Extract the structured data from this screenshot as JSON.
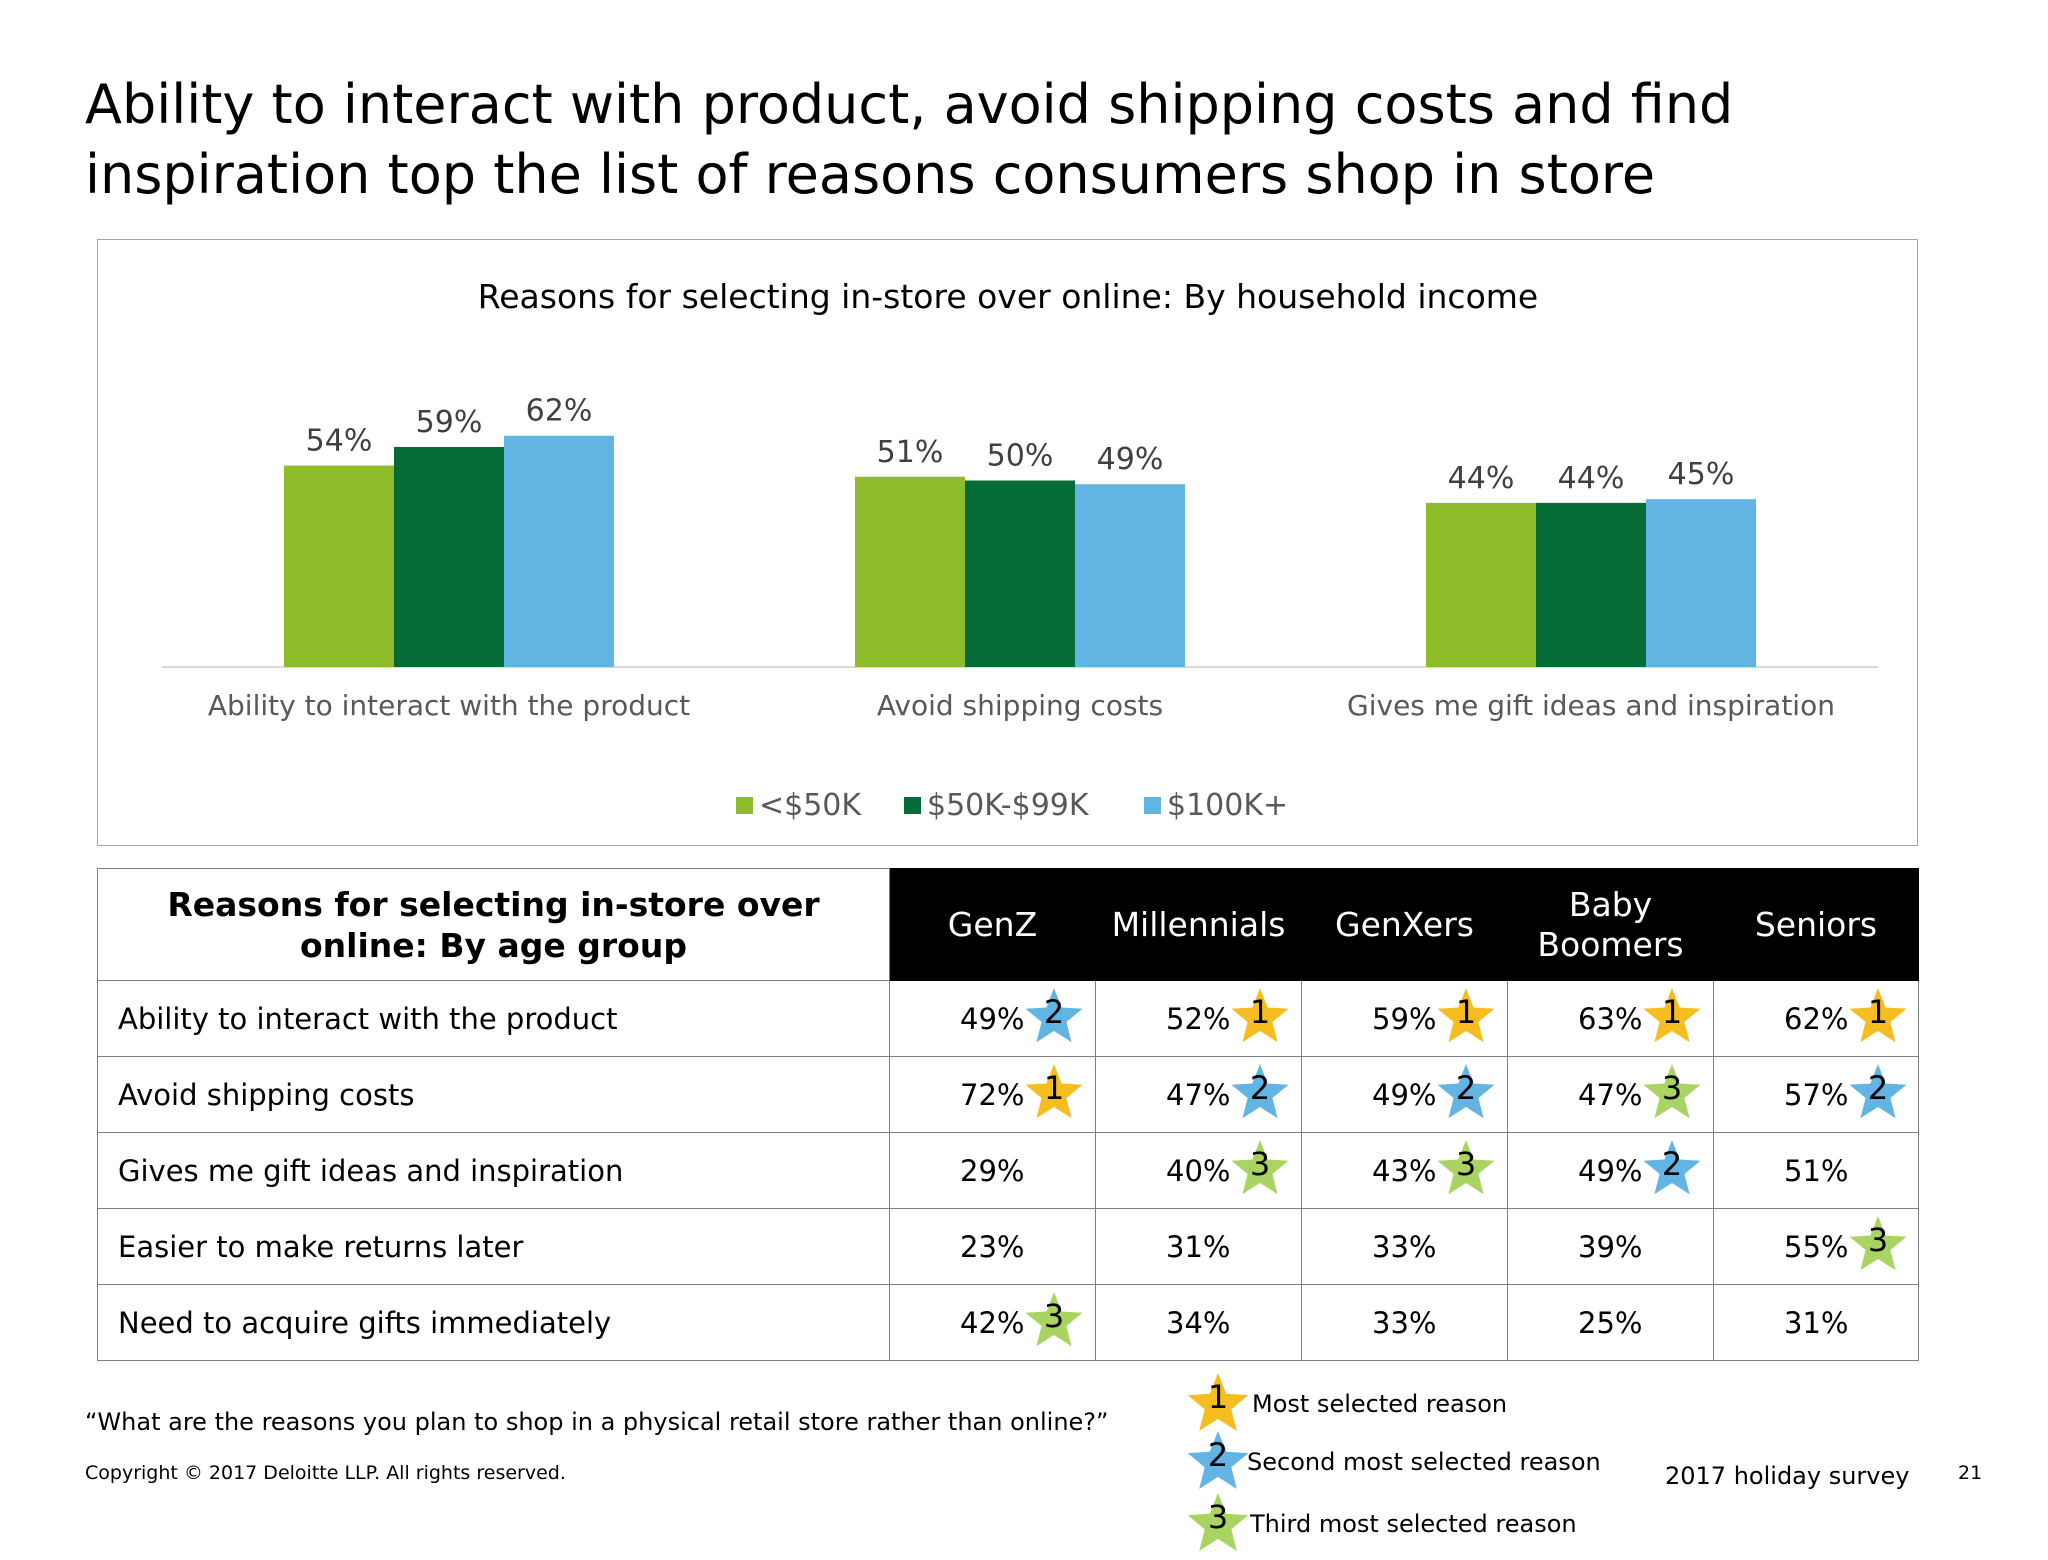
{
  "title": "Ability to interact with product, avoid shipping costs and find inspiration top the list of reasons consumers shop in store",
  "chart_data": {
    "type": "bar",
    "title": "Reasons for selecting in-store over online: By household income",
    "categories": [
      "Ability to interact with the product",
      "Avoid shipping costs",
      "Gives me gift ideas and inspiration"
    ],
    "series": [
      {
        "name": "<$50K",
        "values": [
          54,
          51,
          44
        ],
        "labels": [
          "54%",
          "51%",
          "44%"
        ],
        "color": "#8dbb29"
      },
      {
        "name": "$50K-$99K",
        "values": [
          59,
          50,
          44
        ],
        "labels": [
          "59%",
          "50%",
          "44%"
        ],
        "color": "#056b37"
      },
      {
        "name": "$100K+",
        "values": [
          62,
          49,
          45
        ],
        "labels": [
          "62%",
          "49%",
          "45%"
        ],
        "color": "#62b4e3"
      }
    ],
    "ylim": [
      0,
      100
    ],
    "grid": false,
    "legend": "bottom-center"
  },
  "table": {
    "header": "Reasons for selecting in-store over online: By age group",
    "groups": [
      "GenZ",
      "Millennials",
      "GenXers",
      "Baby Boomers",
      "Seniors"
    ],
    "rows": [
      {
        "label": "Ability to interact with the product",
        "values": [
          "49%",
          "52%",
          "59%",
          "63%",
          "62%"
        ],
        "ranks": [
          "2",
          "1",
          "1",
          "1",
          "1"
        ]
      },
      {
        "label": "Avoid shipping costs",
        "values": [
          "72%",
          "47%",
          "49%",
          "47%",
          "57%"
        ],
        "ranks": [
          "1",
          "2",
          "2",
          "3",
          "2"
        ]
      },
      {
        "label": "Gives me gift ideas and inspiration",
        "values": [
          "29%",
          "40%",
          "43%",
          "49%",
          "51%"
        ],
        "ranks": [
          "",
          "3",
          "3",
          "2",
          ""
        ]
      },
      {
        "label": "Easier to make returns later",
        "values": [
          "23%",
          "31%",
          "33%",
          "39%",
          "55%"
        ],
        "ranks": [
          "",
          "",
          "",
          "",
          "3"
        ]
      },
      {
        "label": "Need to acquire gifts immediately",
        "values": [
          "42%",
          "34%",
          "33%",
          "25%",
          "31%"
        ],
        "ranks": [
          "3",
          "",
          "",
          "",
          ""
        ]
      }
    ]
  },
  "rank_colors": {
    "1": "#f5bd1f",
    "2": "#62b4e3",
    "3": "#a9d461"
  },
  "rank_legend": [
    {
      "rank": "1",
      "label": "Most selected reason"
    },
    {
      "rank": "2",
      "label": "Second most selected reason"
    },
    {
      "rank": "3",
      "label": "Third most selected reason"
    }
  ],
  "footer": {
    "question": "“What are the reasons you plan to shop in a physical retail store rather than online?”",
    "copyright": "Copyright © 2017 Deloitte LLP. All rights reserved.",
    "survey": "2017 holiday survey",
    "page_number": "21"
  }
}
